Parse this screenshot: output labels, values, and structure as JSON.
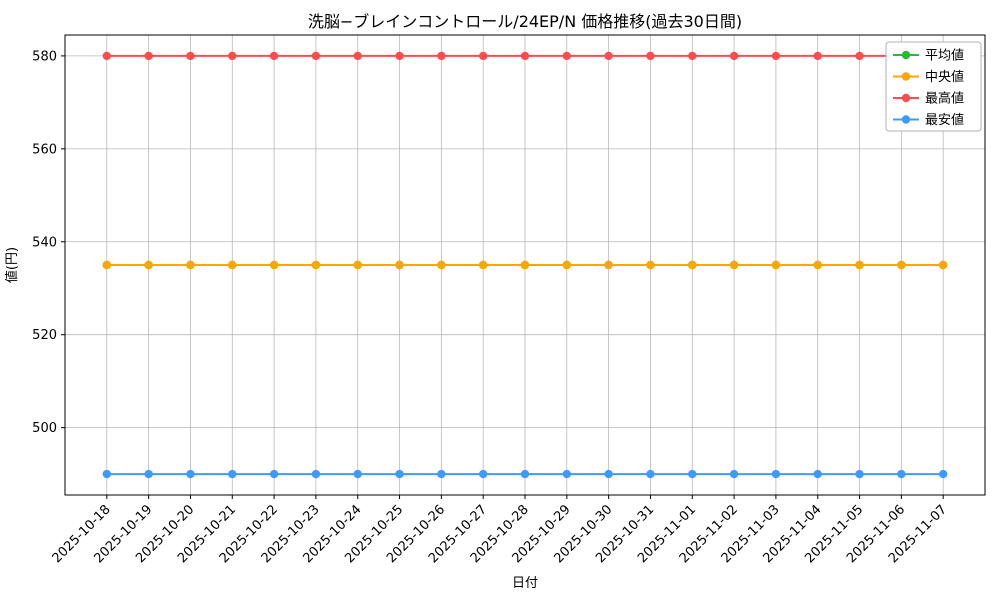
{
  "chart_data": {
    "type": "line",
    "title": "洗脳−ブレインコントロール/24EP/N 価格推移(過去30日間)",
    "xlabel": "日付",
    "ylabel": "値(円)",
    "x": [
      "2025-10-18",
      "2025-10-19",
      "2025-10-20",
      "2025-10-21",
      "2025-10-22",
      "2025-10-23",
      "2025-10-24",
      "2025-10-25",
      "2025-10-26",
      "2025-10-27",
      "2025-10-28",
      "2025-10-29",
      "2025-10-30",
      "2025-10-31",
      "2025-11-01",
      "2025-11-02",
      "2025-11-03",
      "2025-11-04",
      "2025-11-05",
      "2025-11-06",
      "2025-11-07"
    ],
    "series": [
      {
        "id": "average",
        "name": "平均値",
        "color": "#2eb82e",
        "values": [
          535,
          535,
          535,
          535,
          535,
          535,
          535,
          535,
          535,
          535,
          535,
          535,
          535,
          535,
          535,
          535,
          535,
          535,
          535,
          535,
          535
        ]
      },
      {
        "id": "median",
        "name": "中央値",
        "color": "#ffa500",
        "values": [
          535,
          535,
          535,
          535,
          535,
          535,
          535,
          535,
          535,
          535,
          535,
          535,
          535,
          535,
          535,
          535,
          535,
          535,
          535,
          535,
          535
        ]
      },
      {
        "id": "max",
        "name": "最高値",
        "color": "#ff4d4d",
        "values": [
          580,
          580,
          580,
          580,
          580,
          580,
          580,
          580,
          580,
          580,
          580,
          580,
          580,
          580,
          580,
          580,
          580,
          580,
          580,
          580,
          580
        ]
      },
      {
        "id": "min",
        "name": "最安値",
        "color": "#3d9aff",
        "values": [
          490,
          490,
          490,
          490,
          490,
          490,
          490,
          490,
          490,
          490,
          490,
          490,
          490,
          490,
          490,
          490,
          490,
          490,
          490,
          490,
          490
        ]
      }
    ],
    "yticks": [
      500,
      520,
      540,
      560,
      580
    ],
    "ylim": [
      485.5,
      584.5
    ],
    "grid": true,
    "legend_position": "upper right",
    "background": "#ffffff"
  }
}
